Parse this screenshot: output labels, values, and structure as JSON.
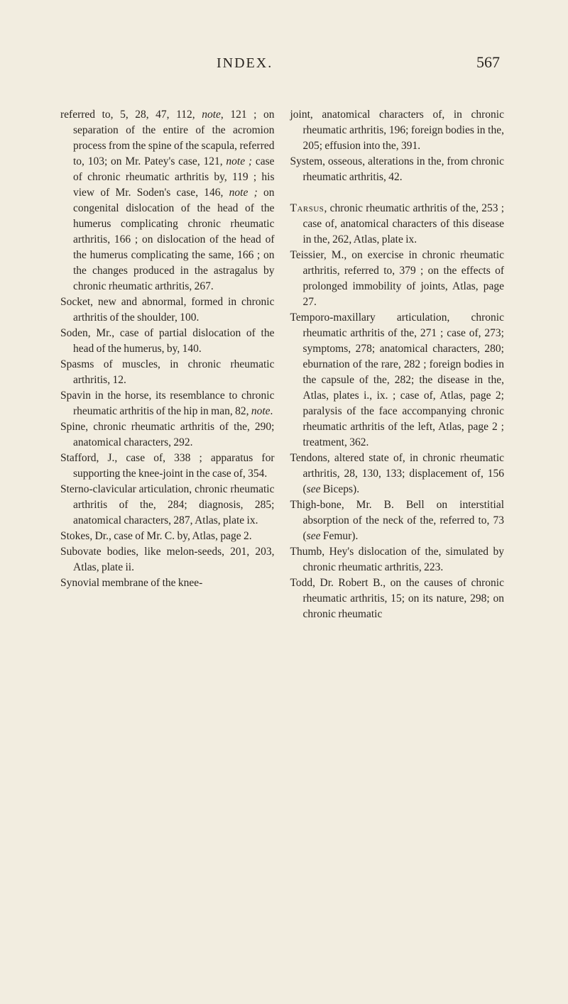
{
  "header": {
    "title": "INDEX.",
    "page_number": "567"
  },
  "columns": {
    "left": [
      "referred to, 5, 28, 47, 112, <i>note</i>, 121 ; on separation of the entire of the acromion process from the spine of the scapula, referred to, 103; on Mr. Patey's case, 121, <i>note ;</i> case of chronic rheumatic arthritis by, 119 ; his view of Mr. Soden's case, 146, <i>note ;</i> on congenital dislocation of the head of the humerus complicating chronic rheumatic arthritis, 166 ; on dislocation of the head of the humerus complicating the same, 166 ; on the changes produced in the astragalus by chronic rheumatic arthritis, 267.",
      "Socket, new and abnormal, formed in chronic arthritis of the shoulder, 100.",
      "Soden, Mr., case of partial dislocation of the head of the humerus, by, 140.",
      "Spasms of muscles, in chronic rheumatic arthritis, 12.",
      "Spavin in the horse, its resemblance to chronic rheumatic arthritis of the hip in man, 82, <i>note</i>.",
      "Spine, chronic rheumatic arthritis of the, 290; anatomical characters, 292.",
      "Stafford, J., case of, 338 ; apparatus for supporting the knee-joint in the case of, 354.",
      "Sterno-clavicular articulation, chronic rheumatic arthritis of the, 284; diagnosis, 285; anatomical characters, 287, Atlas, plate ix.",
      "Stokes, Dr., case of Mr. C. by, Atlas, page 2.",
      "Subovate bodies, like melon-seeds, 201, 203, Atlas, plate ii.",
      "Synovial membrane of the knee-"
    ],
    "right": [
      "joint, anatomical characters of, in chronic rheumatic arthritis, 196; foreign bodies in the, 205; effusion into the, 391.",
      "System, osseous, alterations in the, from chronic rheumatic arthritis, 42.",
      "",
      "<span class='smallcaps'>Tarsus</span>, chronic rheumatic arthritis of the, 253 ; case of, anatomical characters of this disease in the, 262, Atlas, plate ix.",
      "Teissier, M., on exercise in chronic rheumatic arthritis, referred to, 379 ; on the effects of prolonged immobility of joints, Atlas, page 27.",
      "Temporo-maxillary articulation, chronic rheumatic arthritis of the, 271 ; case of, 273; symptoms, 278; anatomical characters, 280; eburnation of the rare, 282 ; foreign bodies in the capsule of the, 282; the disease in the, Atlas, plates i., ix. ; case of, Atlas, page 2; paralysis of the face accompanying chronic rheumatic arthritis of the left, Atlas, page 2 ; treatment, 362.",
      "Tendons, altered state of, in chronic rheumatic arthritis, 28, 130, 133; displacement of, 156 (<i>see</i> Biceps).",
      "Thigh-bone, Mr. B. Bell on interstitial absorption of the neck of the, referred to, 73 (<i>see</i> Femur).",
      "Thumb, Hey's dislocation of the, simulated by chronic rheumatic arthritis, 223.",
      "Todd, Dr. Robert B., on the causes of chronic rheumatic arthritis, 15; on its nature, 298; on chronic rheumatic"
    ]
  },
  "style": {
    "background_color": "#f2ede0",
    "text_color": "#2a2520",
    "body_font_size": 15.5,
    "header_font_size": 20,
    "page_number_font_size": 22,
    "line_height": 1.42,
    "column_gap": 22,
    "hanging_indent": 18
  }
}
